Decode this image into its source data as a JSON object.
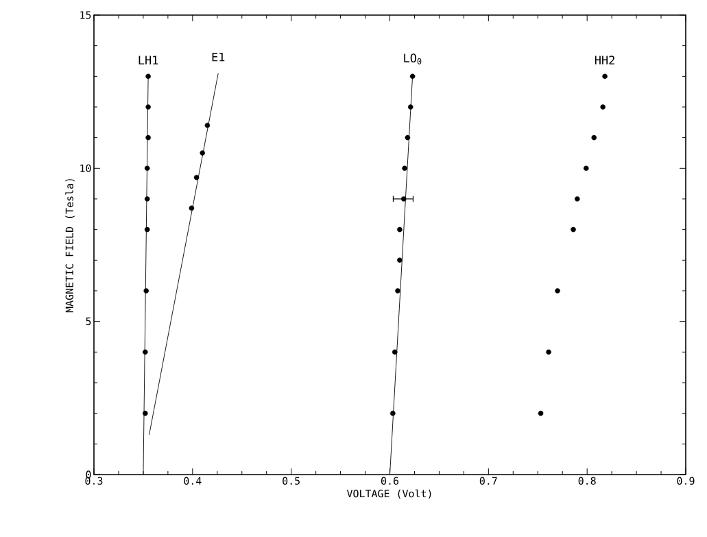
{
  "chart_data": {
    "type": "scatter",
    "xlabel": "VOLTAGE   (Volt)",
    "ylabel": "MAGNETIC FIELD (Tesla)",
    "xlim": [
      0.3,
      0.9
    ],
    "ylim": [
      0,
      15
    ],
    "xticks": [
      0.3,
      0.4,
      0.5,
      0.6,
      0.7,
      0.8,
      0.9
    ],
    "yticks": [
      0,
      5,
      10,
      15
    ],
    "grid": false,
    "marker": "circle",
    "annotations": [
      "LH1",
      "E1",
      "LO$_{0}$",
      "HH2"
    ],
    "series": [
      {
        "color": "#000000",
        "x": [
          0.352,
          0.352,
          0.353,
          0.354,
          0.354,
          0.354,
          0.355,
          0.355,
          0.355
        ],
        "values": [
          2,
          4,
          6,
          8,
          9,
          10,
          11,
          12,
          13
        ]
      },
      {
        "type": "line",
        "color": "#000000",
        "marker": "none",
        "x": [
          0.35,
          0.355
        ],
        "values": [
          0,
          13
        ]
      },
      {
        "color": "#000000",
        "x": [
          0.399,
          0.404,
          0.41,
          0.415
        ],
        "values": [
          8.7,
          9.7,
          10.5,
          11.4
        ]
      },
      {
        "type": "line",
        "color": "#000000",
        "marker": "none",
        "x": [
          0.356,
          0.426
        ],
        "values": [
          1.3,
          13.1
        ]
      },
      {
        "color": "#000000",
        "x": [
          0.603,
          0.605,
          0.608,
          0.61,
          0.61,
          0.614,
          0.615,
          0.618,
          0.621,
          0.623
        ],
        "values": [
          2,
          4,
          6,
          7,
          8,
          9,
          10,
          11,
          12,
          13
        ],
        "xerrors": [
          null,
          null,
          null,
          null,
          null,
          [
            0.603,
            0.624
          ],
          null,
          null,
          null,
          null
        ]
      },
      {
        "type": "line",
        "color": "#000000",
        "marker": "none",
        "x": [
          0.6,
          0.623
        ],
        "values": [
          0,
          13
        ]
      },
      {
        "color": "#000000",
        "x": [
          0.753,
          0.761,
          0.77,
          0.786,
          0.79,
          0.799,
          0.807,
          0.816,
          0.818
        ],
        "values": [
          2,
          4,
          6,
          8,
          9,
          10,
          11,
          12,
          13
        ]
      }
    ]
  }
}
